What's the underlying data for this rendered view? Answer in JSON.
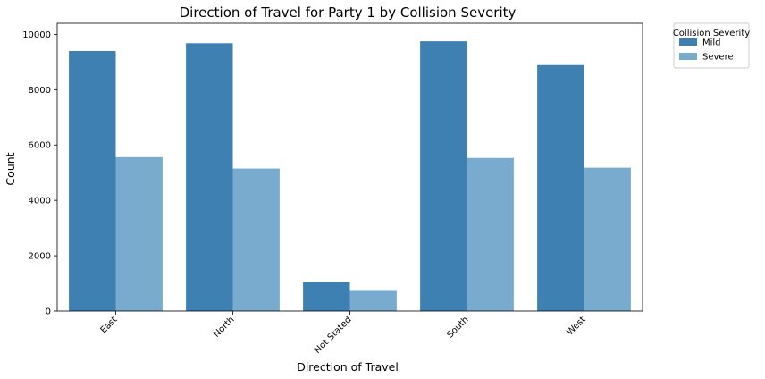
{
  "chart_data": {
    "type": "bar",
    "title": "Direction of Travel for Party 1 by Collision Severity",
    "xlabel": "Direction of Travel",
    "ylabel": "Count",
    "categories": [
      "East",
      "North",
      "Not Stated",
      "South",
      "West"
    ],
    "series": [
      {
        "name": "Mild",
        "color": "#3f80b2",
        "values": [
          9400,
          9680,
          1040,
          9750,
          8890
        ]
      },
      {
        "name": "Severe",
        "color": "#78abcd",
        "values": [
          5560,
          5150,
          760,
          5530,
          5180
        ]
      }
    ],
    "ylim": [
      0,
      10400
    ],
    "yticks": [
      0,
      2000,
      4000,
      6000,
      8000,
      10000
    ],
    "grid": false,
    "legend": {
      "title": "Collision Severity",
      "placement": "outside-top-right"
    }
  }
}
